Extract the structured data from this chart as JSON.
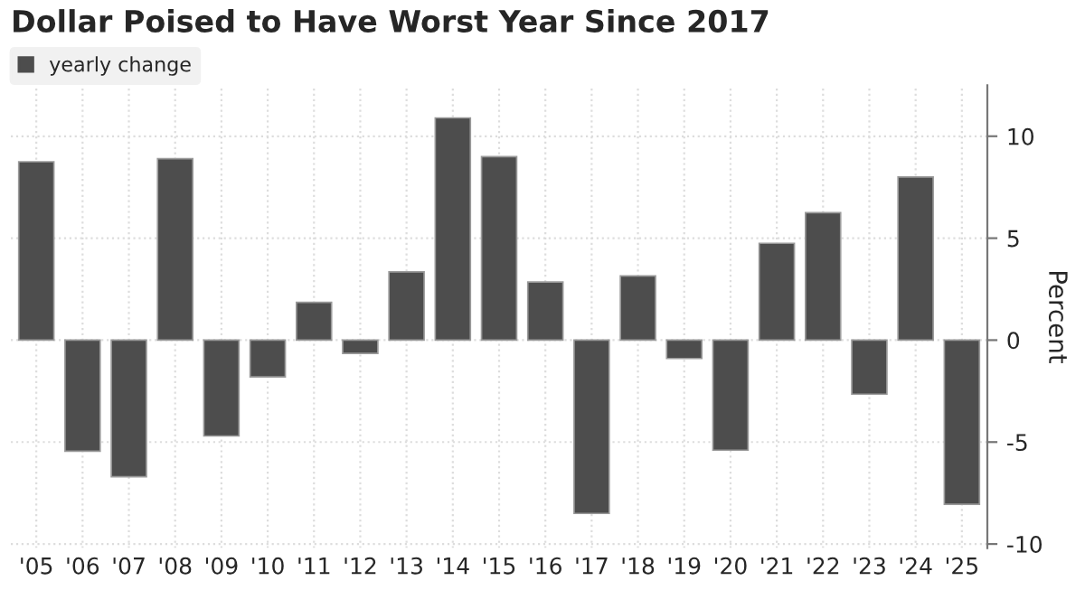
{
  "chart_data": {
    "type": "bar",
    "title": "Dollar Poised to Have Worst Year Since 2017",
    "ylabel": "Percent",
    "categories": [
      "'05",
      "'06",
      "'07",
      "'08",
      "'09",
      "'10",
      "'11",
      "'12",
      "'13",
      "'14",
      "'15",
      "'16",
      "'17",
      "'18",
      "'19",
      "'20",
      "'21",
      "'22",
      "'23",
      "'24",
      "'25"
    ],
    "series": [
      {
        "name": "yearly change",
        "color": "#4d4d4d",
        "values": [
          8.75,
          -5.45,
          -6.7,
          8.9,
          -4.7,
          -1.8,
          1.85,
          -0.65,
          3.35,
          10.9,
          9.0,
          2.85,
          -8.5,
          3.15,
          -0.9,
          -5.4,
          4.75,
          6.25,
          -2.65,
          8.0,
          -8.05
        ]
      }
    ],
    "ylim": [
      -10.2,
      12.5
    ],
    "yticks": [
      -10,
      -5,
      0,
      5,
      10
    ],
    "grid": true,
    "legend": "top left"
  }
}
